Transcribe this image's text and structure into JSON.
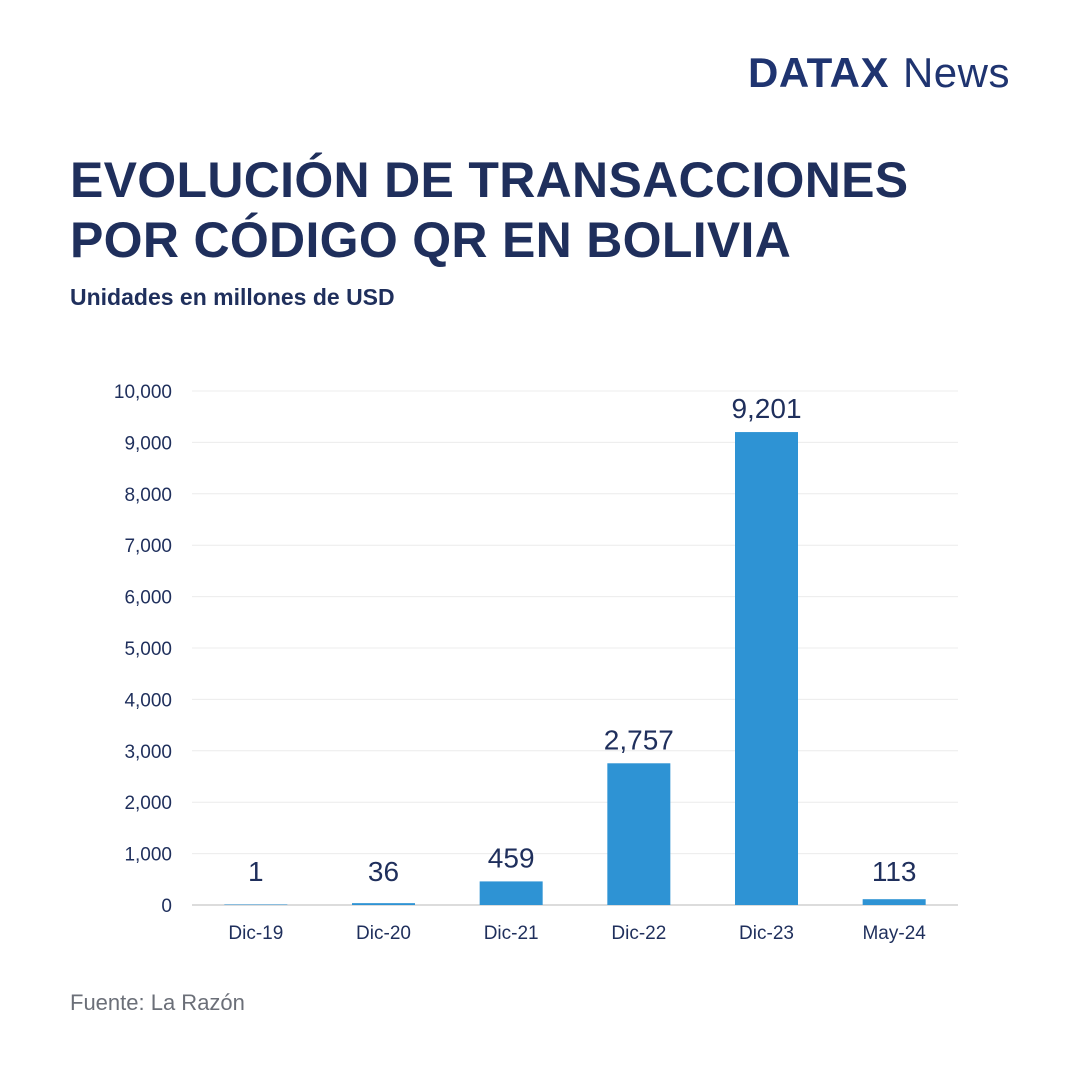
{
  "brand": {
    "main": "DATAX",
    "sub": "News"
  },
  "title": "EVOLUCIÓN DE TRANSACCIONES POR CÓDIGO QR EN BOLIVIA",
  "subtitle": "Unidades en millones de USD",
  "source": "Fuente: La Razón",
  "colors": {
    "bar": "#2e93d4",
    "text": "#1f2f5c",
    "grid": "#ececec",
    "axis": "#d0d0d0"
  },
  "chart_data": {
    "type": "bar",
    "categories": [
      "Dic-19",
      "Dic-20",
      "Dic-21",
      "Dic-22",
      "Dic-23",
      "May-24"
    ],
    "values": [
      1,
      36,
      459,
      2757,
      9201,
      113
    ],
    "value_labels": [
      "1",
      "36",
      "459",
      "2,757",
      "9,201",
      "113"
    ],
    "yticks": [
      "0",
      "1,000",
      "2,000",
      "3,000",
      "4,000",
      "5,000",
      "6,000",
      "7,000",
      "8,000",
      "9,000",
      "10,000"
    ],
    "ylim": [
      0,
      10000
    ],
    "grid": true,
    "legend": false
  }
}
